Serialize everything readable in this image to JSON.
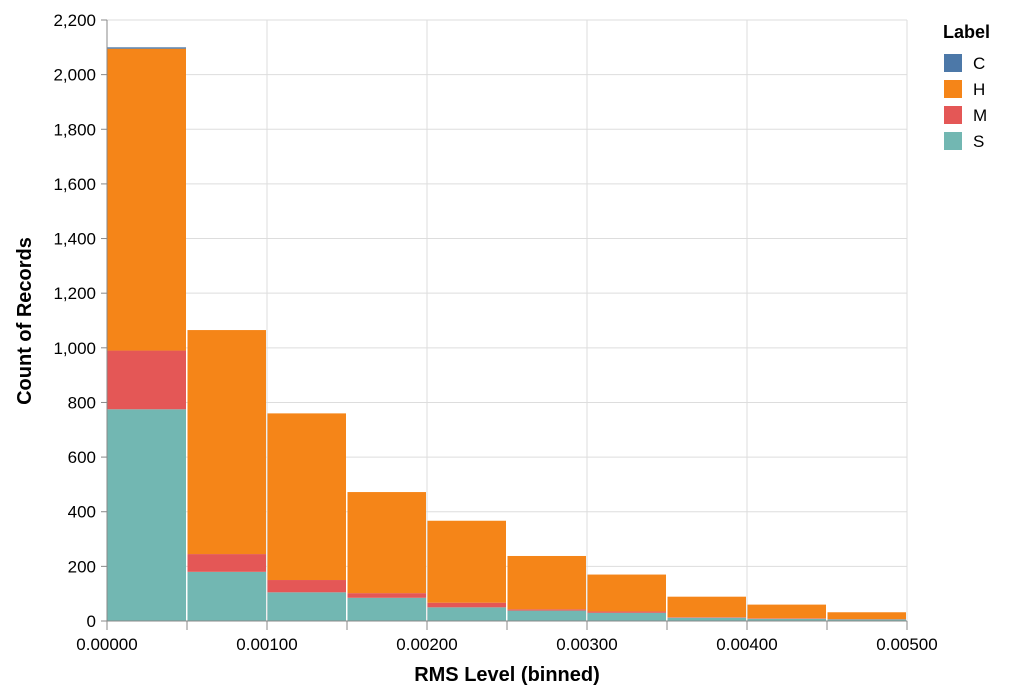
{
  "chart_data": {
    "type": "bar",
    "stacked": true,
    "xlabel": "RMS Level (binned)",
    "ylabel": "Count of Records",
    "ylim": [
      0,
      2200
    ],
    "yticks": [
      "0",
      "200",
      "400",
      "600",
      "800",
      "1,000",
      "1,200",
      "1,400",
      "1,600",
      "1,800",
      "2,000",
      "2,200"
    ],
    "ytick_values": [
      0,
      200,
      400,
      600,
      800,
      1000,
      1200,
      1400,
      1600,
      1800,
      2000,
      2200
    ],
    "xlim": [
      0,
      0.005
    ],
    "xticks": [
      "0.00000",
      "0.00100",
      "0.00200",
      "0.00300",
      "0.00400",
      "0.00500"
    ],
    "xtick_values": [
      0,
      0.001,
      0.002,
      0.003,
      0.004,
      0.005
    ],
    "bin_width": 0.0005,
    "bins": [
      0,
      0.0005,
      0.001,
      0.0015,
      0.002,
      0.0025,
      0.003,
      0.0035,
      0.004,
      0.0045
    ],
    "grid": true,
    "legend": {
      "title": "Label",
      "position": "top-right"
    },
    "series": [
      {
        "name": "S",
        "color": "#72b7b2",
        "values": [
          775,
          180,
          105,
          85,
          50,
          38,
          30,
          12,
          8,
          6
        ]
      },
      {
        "name": "M",
        "color": "#e45756",
        "values": [
          215,
          65,
          45,
          17,
          17,
          5,
          5,
          2,
          2,
          1
        ]
      },
      {
        "name": "H",
        "color": "#f58518",
        "values": [
          1105,
          820,
          610,
          370,
          300,
          195,
          135,
          75,
          50,
          25
        ]
      },
      {
        "name": "C",
        "color": "#4c78a8",
        "values": [
          5,
          0,
          0,
          0,
          0,
          0,
          0,
          0,
          0,
          0
        ]
      }
    ],
    "legend_order": [
      "C",
      "H",
      "M",
      "S"
    ]
  }
}
